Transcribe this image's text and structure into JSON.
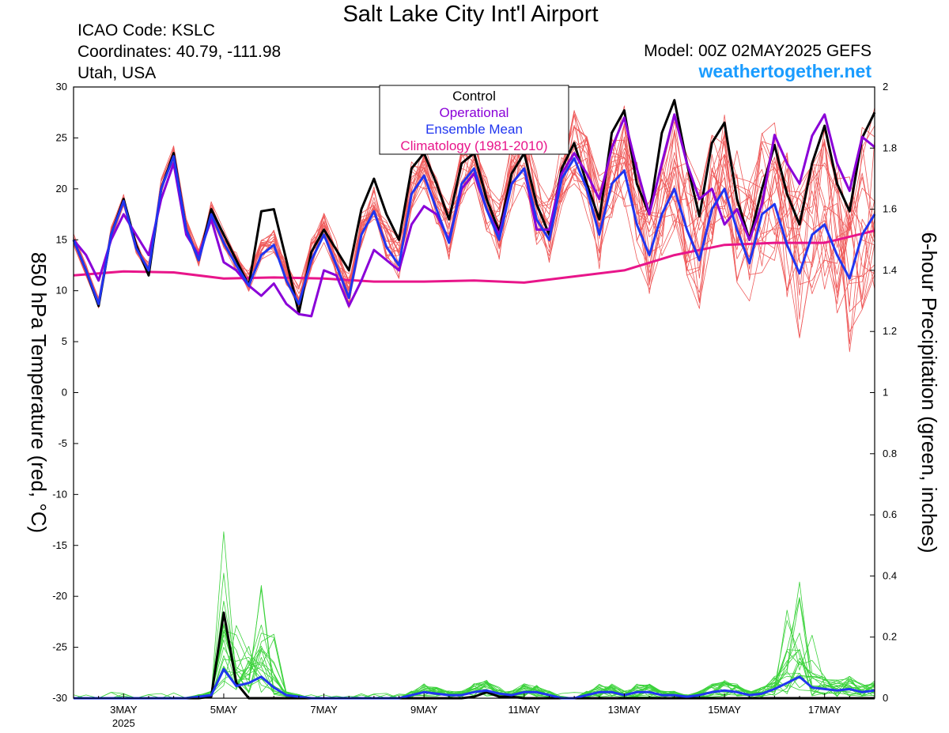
{
  "header": {
    "title": "Salt Lake City Int'l Airport",
    "icao": "ICAO Code: KSLC",
    "coords": "Coordinates: 40.79, -111.98",
    "region": "Utah, USA",
    "model": "Model: 00Z 02MAY2025 GEFS",
    "site": "weathertogether.net"
  },
  "legend": {
    "entries": [
      {
        "label": "Control",
        "color": "#000000"
      },
      {
        "label": "Operational",
        "color": "#8a00d8"
      },
      {
        "label": "Ensemble Mean",
        "color": "#2035f0"
      },
      {
        "label": "Climatology (1981-2010)",
        "color": "#e8158a"
      }
    ]
  },
  "colors": {
    "control": "#000000",
    "operational": "#8a00d8",
    "mean": "#2035f0",
    "climatology": "#e8158a",
    "member_temp": "#ef5a5a",
    "member_precip": "#3ad23a",
    "site_link": "#1a9cff"
  },
  "chart_data": {
    "type": "line",
    "ylabel_left": "850 hPa Temperature (red, °C)",
    "ylabel_right": "6-hour Precipitation (green, inches)",
    "ylim_left": [
      -30,
      30
    ],
    "ylim_right": [
      0,
      2
    ],
    "y_ticks_left": [
      "30",
      "25",
      "20",
      "15",
      "10",
      "5",
      "0",
      "-5",
      "-10",
      "-15",
      "-20",
      "-25",
      "-30"
    ],
    "y_ticks_right": [
      "2",
      "1.8",
      "1.6",
      "1.4",
      "1.2",
      "1",
      "0.8",
      "0.6",
      "0.4",
      "0.2",
      "0"
    ],
    "x_ticks": [
      {
        "label": "3MAY",
        "sub": "2025",
        "day": 3
      },
      {
        "label": "5MAY",
        "sub": "",
        "day": 5
      },
      {
        "label": "7MAY",
        "sub": "",
        "day": 7
      },
      {
        "label": "9MAY",
        "sub": "",
        "day": 9
      },
      {
        "label": "11MAY",
        "sub": "",
        "day": 11
      },
      {
        "label": "13MAY",
        "sub": "",
        "day": 13
      },
      {
        "label": "15MAY",
        "sub": "",
        "day": 15
      },
      {
        "label": "17MAY",
        "sub": "",
        "day": 17
      }
    ],
    "x_range_days": [
      2.0,
      18.0
    ],
    "step_days": 0.25,
    "temperature": {
      "control": [
        15,
        12,
        8.5,
        15.5,
        19,
        14.5,
        11.5,
        20,
        23.5,
        16,
        13,
        18,
        15.5,
        13,
        10.5,
        17.8,
        18,
        13,
        7.8,
        13.8,
        16,
        14,
        12,
        18,
        21,
        17.5,
        15,
        22,
        23.5,
        20.5,
        17,
        22.5,
        23.5,
        19,
        15.8,
        21.5,
        23.5,
        18.5,
        15.5,
        22,
        24.5,
        20.5,
        17,
        25.5,
        27.7,
        20.5,
        17.5,
        25.5,
        28.7,
        22.5,
        17.3,
        24.5,
        26.5,
        19,
        15,
        20,
        24.3,
        19.5,
        16.5,
        22.5,
        26.2,
        20.5,
        17.8,
        25,
        27.5
      ],
      "operational": [
        15,
        13.5,
        11,
        15,
        17.5,
        15.5,
        13.5,
        19,
        22.5,
        15.5,
        13.5,
        17,
        12.8,
        12,
        10.5,
        9.5,
        10.7,
        8.7,
        7.7,
        7.5,
        12,
        11.5,
        8.5,
        11,
        14,
        13,
        12,
        16.5,
        18.3,
        17.5,
        15,
        20,
        21.5,
        18,
        15.5,
        20.5,
        22,
        16,
        16,
        21.5,
        23.5,
        21.5,
        19,
        24,
        27,
        22,
        17.5,
        22.5,
        27.3,
        22.5,
        19,
        20,
        16.5,
        18,
        15,
        18.5,
        25.3,
        22.5,
        20.5,
        25.2,
        27.3,
        22.5,
        19.8,
        25.1,
        24.1
      ],
      "ensemble_mean": [
        15,
        12,
        8.7,
        15.5,
        18.8,
        14.2,
        12,
        20,
        23.2,
        16,
        13,
        17.5,
        14.7,
        12.5,
        10.5,
        13.5,
        14.5,
        11,
        8.7,
        13,
        15.5,
        12.5,
        9.3,
        15.5,
        17.8,
        14.3,
        12.5,
        19.5,
        21.3,
        18,
        14.7,
        20.5,
        22,
        18,
        15,
        20.5,
        22,
        17,
        15,
        21,
        23,
        20,
        15.5,
        20.5,
        21.8,
        16.5,
        13.5,
        17.5,
        20,
        16,
        13,
        18,
        20,
        16,
        12.7,
        17.5,
        18.5,
        14.5,
        11.7,
        15.5,
        16.5,
        13.5,
        11.2,
        15.5,
        17.5
      ],
      "climatology": [
        [
          2,
          11.5
        ],
        [
          3,
          11.9
        ],
        [
          4,
          11.8
        ],
        [
          5,
          11.2
        ],
        [
          6,
          11.3
        ],
        [
          7,
          11.2
        ],
        [
          8,
          10.9
        ],
        [
          9,
          10.9
        ],
        [
          10,
          11.0
        ],
        [
          11,
          10.8
        ],
        [
          12,
          11.4
        ],
        [
          13,
          12.0
        ],
        [
          14,
          13.5
        ],
        [
          15,
          14.5
        ],
        [
          16,
          14.7
        ],
        [
          17,
          14.7
        ],
        [
          18,
          15.9
        ]
      ]
    },
    "precipitation": {
      "control": [
        0,
        0,
        0,
        0,
        0,
        0,
        0,
        0,
        0,
        0,
        0,
        0.005,
        0.28,
        0.05,
        0,
        0,
        0,
        0,
        0,
        0,
        0,
        0,
        0,
        0,
        0,
        0,
        0,
        0,
        0,
        0,
        0,
        0,
        0.005,
        0.02,
        0.005,
        0.005,
        0,
        0,
        0,
        0,
        0,
        0,
        0,
        0,
        0,
        0,
        0,
        0,
        0,
        0,
        0,
        0,
        0,
        0,
        0,
        0,
        0,
        0,
        0,
        0,
        0,
        0,
        0,
        0,
        0
      ],
      "ensemble_mean": [
        0,
        0,
        0,
        0,
        0,
        0,
        0,
        0,
        0,
        0,
        0.005,
        0.01,
        0.095,
        0.04,
        0.05,
        0.07,
        0.035,
        0.01,
        0.005,
        0,
        0,
        0,
        0,
        0,
        0,
        0,
        0,
        0.01,
        0.02,
        0.015,
        0.01,
        0.01,
        0.02,
        0.025,
        0.015,
        0.01,
        0.02,
        0.02,
        0.01,
        0,
        0,
        0.01,
        0.02,
        0.02,
        0.01,
        0.02,
        0.02,
        0.01,
        0.01,
        0.005,
        0.01,
        0.02,
        0.025,
        0.02,
        0.01,
        0.015,
        0.03,
        0.05,
        0.07,
        0.035,
        0.03,
        0.025,
        0.03,
        0.02,
        0.025
      ]
    }
  }
}
